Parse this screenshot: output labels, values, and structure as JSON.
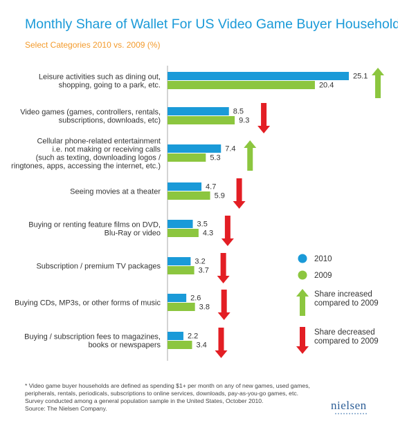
{
  "title": "Monthly Share of Wallet For US Video Game Buyer Households*",
  "subtitle": "Select Categories 2010 vs. 2009 (%)",
  "colors": {
    "series_2010": "#1a9ad8",
    "series_2009": "#8cc63f",
    "increase": "#8cc63f",
    "decrease": "#e31e24",
    "axis": "#aaaaaa"
  },
  "chart_data": {
    "type": "bar",
    "orientation": "horizontal",
    "categories": [
      [
        "Leisure activities such as dining out,",
        "shopping, going to a park, etc."
      ],
      [
        "Video games (games, controllers, rentals,",
        "subscriptions, downloads, etc)"
      ],
      [
        "Cellular phone-related entertainment",
        "i.e. not making or receiving calls",
        "(such as texting, downloading logos /",
        "ringtones, apps, accessing the internet, etc.)"
      ],
      [
        "Seeing movies at a theater"
      ],
      [
        "Buying or renting feature films on DVD,",
        "Blu-Ray or video"
      ],
      [
        "Subscription / premium TV packages"
      ],
      [
        "Buying CDs, MP3s, or other forms of music"
      ],
      [
        "Buying / subscription fees to magazines,",
        "books or newspapers"
      ]
    ],
    "series": [
      {
        "name": "2010",
        "values": [
          25.1,
          8.5,
          7.4,
          4.7,
          3.5,
          3.2,
          2.6,
          2.2
        ]
      },
      {
        "name": "2009",
        "values": [
          20.4,
          9.3,
          5.3,
          5.9,
          4.3,
          3.7,
          3.8,
          3.4
        ]
      }
    ],
    "change": [
      "increase",
      "decrease",
      "increase",
      "decrease",
      "decrease",
      "decrease",
      "decrease",
      "decrease"
    ],
    "xlim": [
      0,
      25.1
    ],
    "grid": false,
    "legend_position": "right"
  },
  "legend": {
    "items": [
      {
        "label": "2010",
        "color": "#1a9ad8"
      },
      {
        "label": "2009",
        "color": "#8cc63f"
      }
    ],
    "increase_lines": [
      "Share increased",
      "compared to 2009"
    ],
    "decrease_lines": [
      "Share decreased",
      "compared to 2009"
    ]
  },
  "footnote": "* Video game buyer households are defined as spending $1+ per month on any of new games, used games,\nperipherals, rentals, periodicals, subscriptions to online services, downloads, pay-as-you-go games, etc.\nSurvey conducted among a general population sample in the United States, October 2010.\nSource: The Nielsen Company.",
  "logo_text": "nielsen"
}
